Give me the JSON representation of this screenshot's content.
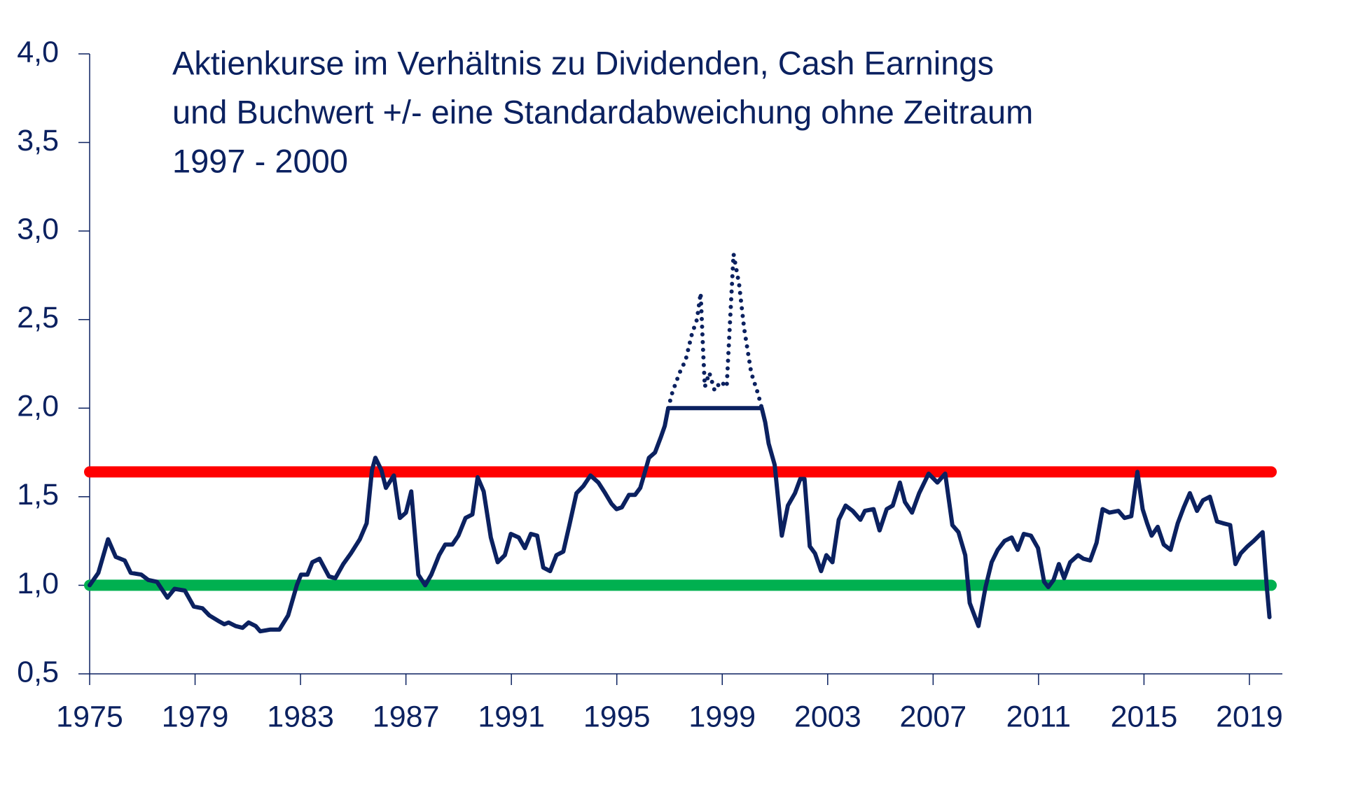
{
  "chart_data": {
    "type": "line",
    "title": [
      "Aktienkurse im Verhältnis zu Dividenden, Cash Earnings",
      "und Buchwert +/- eine Standardabweichung ohne Zeitraum",
      "1997 - 2000"
    ],
    "xlim": [
      1975,
      2020.25
    ],
    "xticks": [
      1975,
      1979,
      1983,
      1987,
      1991,
      1995,
      1999,
      2003,
      2007,
      2011,
      2015,
      2019
    ],
    "ylim": [
      0.5,
      4.0
    ],
    "yticks": [
      {
        "value": 0.5,
        "label": "0,5"
      },
      {
        "value": 1.0,
        "label": "1,0"
      },
      {
        "value": 1.5,
        "label": "1,5"
      },
      {
        "value": 2.0,
        "label": "2,0"
      },
      {
        "value": 2.5,
        "label": "2,5"
      },
      {
        "value": 3.0,
        "label": "3,0"
      },
      {
        "value": 3.5,
        "label": "3,5"
      },
      {
        "value": 4.0,
        "label": "4,0"
      }
    ],
    "reference_lines": [
      {
        "value": 1.64,
        "color": "#ff0000"
      },
      {
        "value": 1.0,
        "color": "#00b050"
      }
    ],
    "series": [
      {
        "color": "#0b2160",
        "style": "solid",
        "x": [
          1975.0,
          1975.33,
          1975.7,
          1975.99,
          1976.33,
          1976.56,
          1976.96,
          1977.22,
          1977.55,
          1977.95,
          1978.22,
          1978.61,
          1978.95,
          1979.28,
          1979.54,
          1979.87,
          1980.11,
          1980.27,
          1980.54,
          1980.8,
          1981.03,
          1981.3,
          1981.47,
          1981.86,
          1982.2,
          1982.53,
          1982.86,
          1983.02,
          1983.26,
          1983.45,
          1983.72,
          1984.08,
          1984.32,
          1984.62,
          1984.91,
          1985.25,
          1985.51,
          1985.71,
          1985.84,
          1986.07,
          1986.24,
          1986.54,
          1986.77,
          1987.0,
          1987.2,
          1987.47,
          1987.73,
          1987.96,
          1988.26,
          1988.49,
          1988.76,
          1988.99,
          1989.26,
          1989.52,
          1989.72,
          1989.95,
          1990.22,
          1990.48,
          1990.75,
          1990.98,
          1991.28,
          1991.51,
          1991.74,
          1991.98,
          1992.21,
          1992.47,
          1992.71,
          1992.97,
          1993.2,
          1993.47,
          1993.73,
          1994.0,
          1994.3,
          1994.56,
          1994.8,
          1994.99,
          1995.19,
          1995.46,
          1995.69,
          1995.89,
          1996.05,
          1996.22,
          1996.45,
          1996.68,
          1996.82,
          1996.95,
          2000.5,
          2000.63,
          2000.76,
          2000.99,
          2001.26,
          2001.49,
          2001.76,
          2001.96,
          2002.12,
          2002.32,
          2002.52,
          2002.75,
          2002.95,
          2003.18,
          2003.42,
          2003.68,
          2003.95,
          2004.24,
          2004.41,
          2004.74,
          2004.97,
          2005.24,
          2005.47,
          2005.74,
          2005.93,
          2006.2,
          2006.47,
          2006.83,
          2007.16,
          2007.46,
          2007.73,
          2007.96,
          2008.22,
          2008.39,
          2008.72,
          2008.99,
          2009.22,
          2009.45,
          2009.71,
          2009.98,
          2010.21,
          2010.44,
          2010.71,
          2010.98,
          2011.21,
          2011.37,
          2011.57,
          2011.77,
          2011.97,
          2012.2,
          2012.5,
          2012.7,
          2012.96,
          2013.2,
          2013.43,
          2013.69,
          2014.03,
          2014.26,
          2014.52,
          2014.75,
          2014.95,
          2015.12,
          2015.29,
          2015.52,
          2015.75,
          2016.01,
          2016.28,
          2016.51,
          2016.74,
          2017.01,
          2017.24,
          2017.5,
          2017.77,
          2018.0,
          2018.27,
          2018.47,
          2018.67,
          2018.93,
          2019.16,
          2019.5,
          2019.66,
          2019.76
        ],
        "values": [
          1.0,
          1.07,
          1.26,
          1.16,
          1.14,
          1.07,
          1.06,
          1.03,
          1.02,
          0.93,
          0.98,
          0.97,
          0.88,
          0.87,
          0.83,
          0.8,
          0.78,
          0.79,
          0.77,
          0.76,
          0.79,
          0.77,
          0.74,
          0.75,
          0.75,
          0.83,
          1.0,
          1.06,
          1.06,
          1.13,
          1.15,
          1.05,
          1.04,
          1.12,
          1.18,
          1.26,
          1.35,
          1.65,
          1.72,
          1.65,
          1.55,
          1.62,
          1.38,
          1.41,
          1.53,
          1.06,
          1.0,
          1.06,
          1.17,
          1.23,
          1.23,
          1.28,
          1.38,
          1.4,
          1.61,
          1.53,
          1.27,
          1.13,
          1.17,
          1.29,
          1.27,
          1.21,
          1.29,
          1.28,
          1.1,
          1.08,
          1.17,
          1.19,
          1.34,
          1.52,
          1.56,
          1.62,
          1.58,
          1.52,
          1.46,
          1.43,
          1.44,
          1.51,
          1.51,
          1.55,
          1.63,
          1.72,
          1.75,
          1.84,
          1.9,
          2.0,
          2.0,
          1.92,
          1.8,
          1.68,
          1.28,
          1.45,
          1.52,
          1.6,
          1.6,
          1.22,
          1.18,
          1.08,
          1.17,
          1.13,
          1.37,
          1.45,
          1.42,
          1.37,
          1.42,
          1.43,
          1.31,
          1.43,
          1.45,
          1.58,
          1.47,
          1.41,
          1.52,
          1.63,
          1.58,
          1.63,
          1.34,
          1.3,
          1.17,
          0.9,
          0.77,
          0.99,
          1.13,
          1.2,
          1.25,
          1.27,
          1.2,
          1.29,
          1.28,
          1.21,
          1.02,
          0.99,
          1.03,
          1.12,
          1.04,
          1.13,
          1.17,
          1.15,
          1.14,
          1.24,
          1.43,
          1.41,
          1.42,
          1.38,
          1.39,
          1.64,
          1.43,
          1.35,
          1.28,
          1.33,
          1.23,
          1.2,
          1.35,
          1.44,
          1.52,
          1.42,
          1.48,
          1.5,
          1.36,
          1.35,
          1.34,
          1.12,
          1.18,
          1.22,
          1.25,
          1.3,
          0.99,
          0.82
        ]
      },
      {
        "color": "#0b2160",
        "style": "dotted",
        "x": [
          1996.95,
          1997.11,
          1997.38,
          1997.61,
          1997.85,
          1998.04,
          1998.18,
          1998.28,
          1998.34,
          1998.51,
          1998.71,
          1998.94,
          1999.17,
          1999.3,
          1999.43,
          1999.64,
          1999.83,
          2000.1,
          2000.36,
          2000.5
        ],
        "values": [
          2.0,
          2.09,
          2.2,
          2.27,
          2.42,
          2.5,
          2.65,
          2.3,
          2.12,
          2.2,
          2.1,
          2.15,
          2.12,
          2.5,
          2.87,
          2.7,
          2.45,
          2.2,
          2.08,
          2.0
        ]
      }
    ]
  }
}
